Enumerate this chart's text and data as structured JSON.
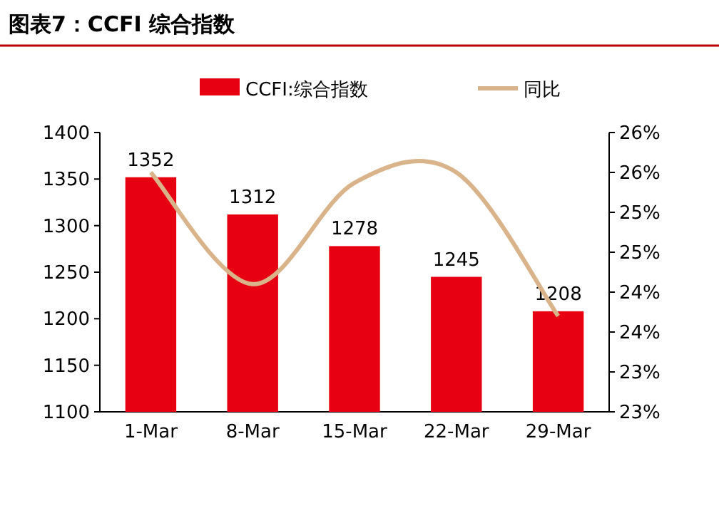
{
  "chart_data": {
    "type": "bar",
    "title": "图表7：CCFI 综合指数",
    "categories": [
      "1-Mar",
      "8-Mar",
      "15-Mar",
      "22-Mar",
      "29-Mar"
    ],
    "series": [
      {
        "name": "CCFI:综合指数",
        "color": "#e60012",
        "values": [
          1352,
          1312,
          1278,
          1245,
          1208
        ],
        "value_labels": [
          "1352",
          "1312",
          "1278",
          "1245",
          "1208"
        ]
      },
      {
        "name": "同比",
        "type": "line",
        "axis": "y2",
        "color": "#d9b48a",
        "values": [
          26.0,
          24.6,
          25.87,
          26.0,
          24.2
        ]
      }
    ],
    "ylim": [
      1100,
      1400
    ],
    "yticks": [
      1100,
      1150,
      1200,
      1250,
      1300,
      1350,
      1400
    ],
    "y2lim": [
      23,
      26.5
    ],
    "y2ticks": [
      {
        "value": 23,
        "label": "23%"
      },
      {
        "value": 23.5,
        "label": "23%"
      },
      {
        "value": 24,
        "label": "24%"
      },
      {
        "value": 24.5,
        "label": "24%"
      },
      {
        "value": 25,
        "label": "25%"
      },
      {
        "value": 25.5,
        "label": "25%"
      },
      {
        "value": 26,
        "label": "26%"
      },
      {
        "value": 26.5,
        "label": "26%"
      }
    ],
    "legend": "top",
    "grid": false,
    "marker": "none"
  }
}
